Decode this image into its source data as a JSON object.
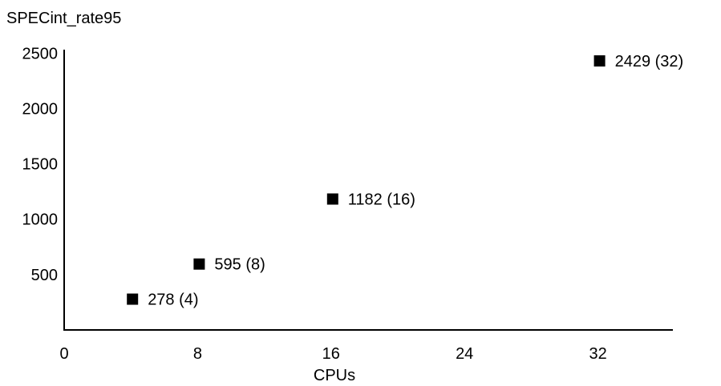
{
  "chart_data": {
    "type": "scatter",
    "title": "",
    "ylabel": "SPECint_rate95",
    "xlabel": "CPUs",
    "xlim": [
      0,
      36
    ],
    "ylim": [
      0,
      2500
    ],
    "x_ticks": [
      "0",
      "8",
      "16",
      "24",
      "32"
    ],
    "y_ticks": [
      "500",
      "1000",
      "1500",
      "2000",
      "2500"
    ],
    "grid": false,
    "legend": "none",
    "marker": "square",
    "marker_color": "#000000",
    "points": [
      {
        "x": 4,
        "y": 278,
        "label": "278 (4)"
      },
      {
        "x": 8,
        "y": 595,
        "label": "595 (8)"
      },
      {
        "x": 16,
        "y": 1182,
        "label": "1182 (16)"
      },
      {
        "x": 32,
        "y": 2429,
        "label": "2429 (32)"
      }
    ]
  }
}
